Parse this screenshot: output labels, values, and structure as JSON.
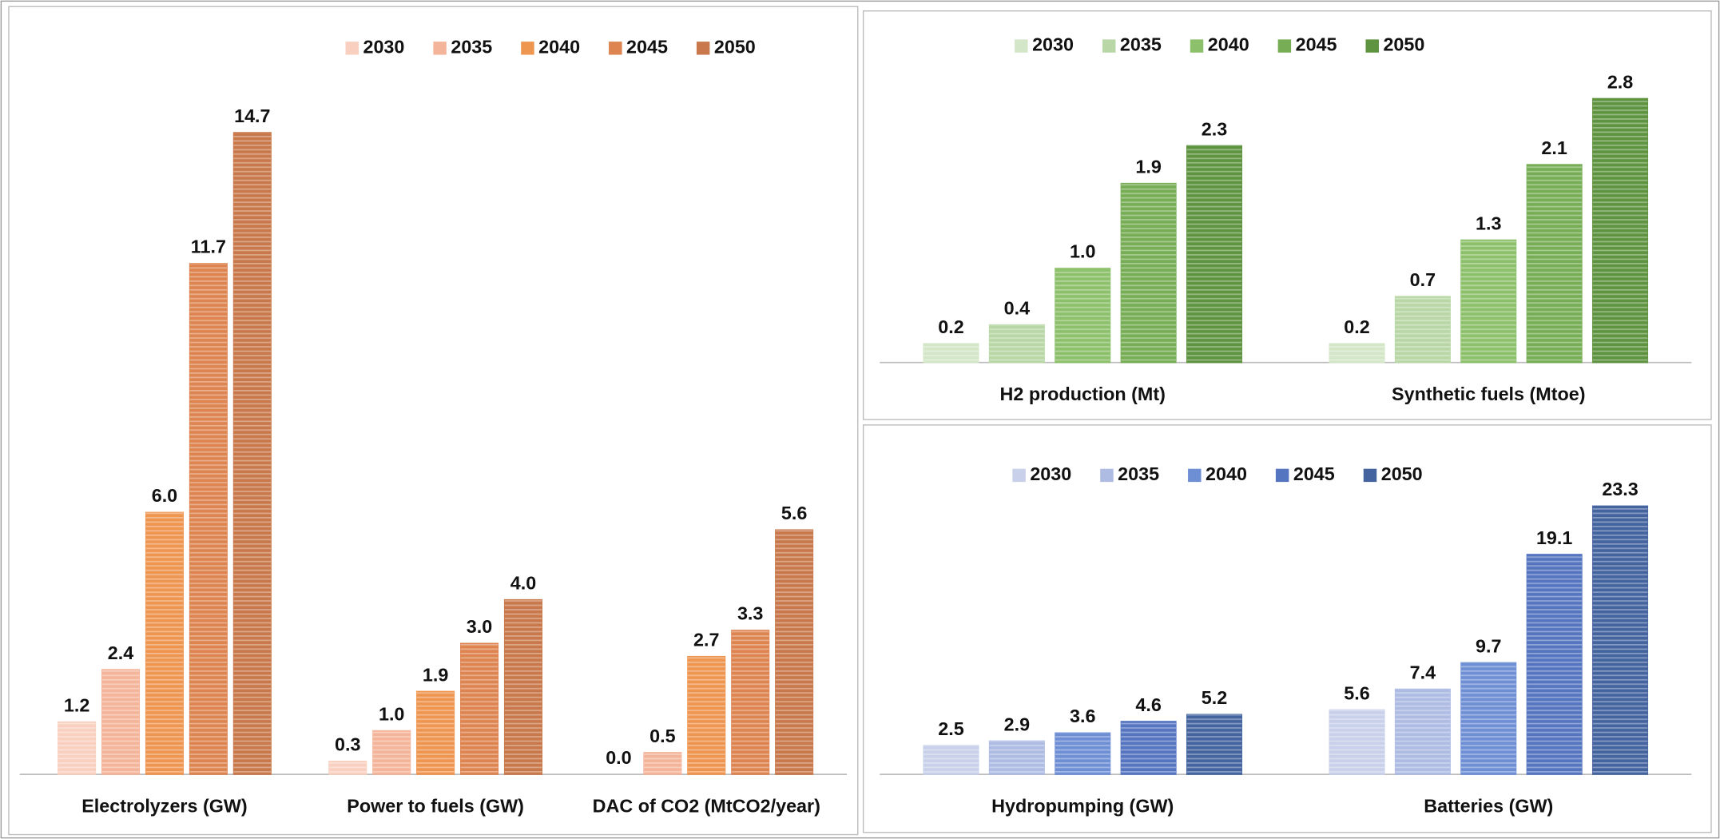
{
  "chart_data": [
    {
      "type": "bar",
      "categories": [
        "Electrolyzers (GW)",
        "Power to fuels (GW)",
        "DAC of CO2 (MtCO2/year)"
      ],
      "series": [
        {
          "name": "2030",
          "color": "#f9d0c0",
          "values": [
            1.2,
            0.3,
            0
          ],
          "value_labels": [
            "1.2",
            "0.3",
            "0.0"
          ]
        },
        {
          "name": "2035",
          "color": "#f4b49a",
          "values": [
            2.4,
            1,
            0.5
          ],
          "value_labels": [
            "2.4",
            "1.0",
            "0.5"
          ]
        },
        {
          "name": "2040",
          "color": "#ee9550",
          "values": [
            6,
            1.9,
            2.7
          ],
          "value_labels": [
            "6.0",
            "1.9",
            "2.7"
          ]
        },
        {
          "name": "2045",
          "color": "#dd8450",
          "values": [
            11.7,
            3,
            3.3
          ],
          "value_labels": [
            "11.7",
            "3.0",
            "3.3"
          ]
        },
        {
          "name": "2050",
          "color": "#c8784a",
          "values": [
            14.7,
            4,
            5.6
          ],
          "value_labels": [
            "14.7",
            "4.0",
            "5.6"
          ]
        }
      ]
    },
    {
      "type": "bar",
      "categories": [
        "H2 production (Mt)",
        "Synthetic fuels (Mtoe)"
      ],
      "series": [
        {
          "name": "2030",
          "color": "#d3e6c8",
          "values": [
            0.2,
            0.2
          ],
          "value_labels": [
            "0.2",
            "0.2"
          ]
        },
        {
          "name": "2035",
          "color": "#b9d7a6",
          "values": [
            0.4,
            0.7
          ],
          "value_labels": [
            "0.4",
            "0.7"
          ]
        },
        {
          "name": "2040",
          "color": "#8cc06a",
          "values": [
            1,
            1.3
          ],
          "value_labels": [
            "1.0",
            "1.3"
          ]
        },
        {
          "name": "2045",
          "color": "#76ad55",
          "values": [
            1.9,
            2.1
          ],
          "value_labels": [
            "1.9",
            "2.1"
          ]
        },
        {
          "name": "2050",
          "color": "#5e9440",
          "values": [
            2.3,
            2.8
          ],
          "value_labels": [
            "2.3",
            "2.8"
          ]
        }
      ]
    },
    {
      "type": "bar",
      "categories": [
        "Hydropumping (GW)",
        "Batteries (GW)"
      ],
      "series": [
        {
          "name": "2030",
          "color": "#c8d0ea",
          "values": [
            2.5,
            5.6
          ],
          "value_labels": [
            "2.5",
            "5.6"
          ]
        },
        {
          "name": "2035",
          "color": "#aebbe3",
          "values": [
            2.9,
            7.4
          ],
          "value_labels": [
            "2.9",
            "7.4"
          ]
        },
        {
          "name": "2040",
          "color": "#6f8fd5",
          "values": [
            3.6,
            9.7
          ],
          "value_labels": [
            "3.6",
            "9.7"
          ]
        },
        {
          "name": "2045",
          "color": "#5575c0",
          "values": [
            4.6,
            19.1
          ],
          "value_labels": [
            "4.6",
            "19.1"
          ]
        },
        {
          "name": "2050",
          "color": "#44649f",
          "values": [
            5.2,
            23.3
          ],
          "value_labels": [
            "5.2",
            "23.3"
          ]
        }
      ]
    }
  ]
}
